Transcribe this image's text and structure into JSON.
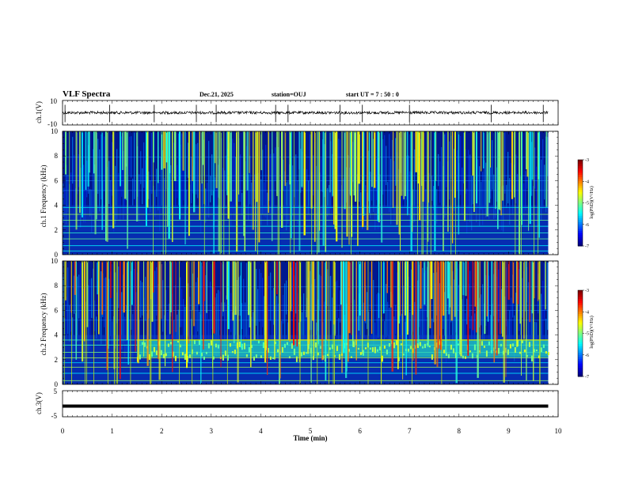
{
  "header": {
    "title": "VLF Spectra",
    "date": "Dec.21, 2025",
    "station": "station=OUJ",
    "start_ut": "start UT =  7 : 50 : 0"
  },
  "chart_data": [
    {
      "type": "line",
      "name": "ch1-waveform",
      "ylabel": "ch.1(V)",
      "ylim": [
        -10,
        10
      ],
      "y_tick_labels": [
        "10",
        "-10"
      ],
      "xlim": [
        0,
        10
      ],
      "baseline": 0,
      "spikes_min": [
        0.05,
        0.95,
        1.85,
        2.7,
        3.1,
        4.3,
        4.55,
        5.6,
        6.05,
        7.0,
        8.65,
        9.7
      ]
    },
    {
      "type": "heatmap",
      "name": "ch1-spectrogram",
      "ylabel": "ch.1 Frequency (kHz)",
      "ylim": [
        0,
        10
      ],
      "y_tick_labels": [
        "0",
        "2",
        "4",
        "6",
        "8",
        "10"
      ],
      "xlim": [
        0,
        10
      ],
      "colorbar": {
        "label": "log(PSD)(V²/Hz)",
        "range": [
          -7,
          -3
        ],
        "tick_labels": [
          "-3",
          "-4",
          "-5",
          "-6",
          "-7"
        ]
      },
      "data_end_min": 9.8
    },
    {
      "type": "heatmap",
      "name": "ch2-spectrogram",
      "ylabel": "ch.2 Frequency (kHz)",
      "ylim": [
        0,
        10
      ],
      "y_tick_labels": [
        "0",
        "2",
        "4",
        "6",
        "8",
        "10"
      ],
      "xlim": [
        0,
        10
      ],
      "colorbar": {
        "label": "log(PSD)(V²/Hz)",
        "range": [
          -7,
          -3
        ],
        "tick_labels": [
          "-3",
          "-4",
          "-5",
          "-6",
          "-7"
        ]
      },
      "band_start_min": 1.5,
      "band_khz": [
        2.2,
        3.6
      ],
      "data_end_min": 9.8
    },
    {
      "type": "line",
      "name": "ch3-waveform",
      "ylabel": "ch.3(V)",
      "ylim": [
        -5,
        5
      ],
      "y_tick_labels": [
        "5",
        "-5"
      ],
      "xlim": [
        0,
        10
      ],
      "level": 0
    }
  ],
  "xaxis": {
    "label": "Time (min)",
    "ticks": [
      "0",
      "1",
      "2",
      "3",
      "4",
      "5",
      "6",
      "7",
      "8",
      "9",
      "10"
    ]
  },
  "colors": {
    "frame": "#000000",
    "background": "#ffffff"
  }
}
